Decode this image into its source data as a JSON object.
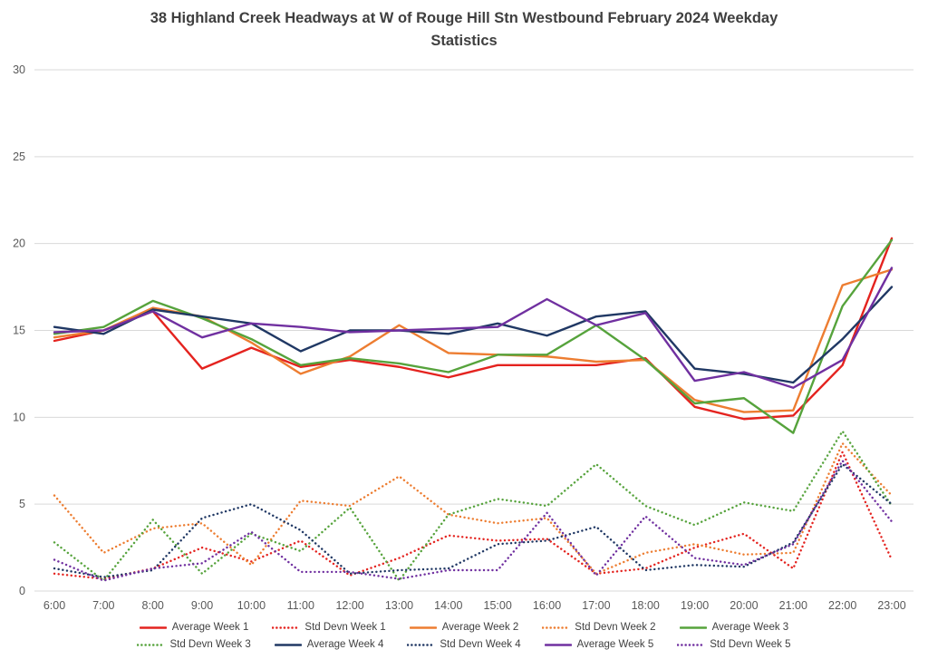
{
  "title": {
    "line1": "38 Highland Creek Headways at W of Rouge Hill Stn Westbound February 2024 Weekday",
    "line2": "Statistics"
  },
  "colors": {
    "grid": "#d9d9d9",
    "axis_text": "#595959",
    "title_text": "#3f3f3f",
    "legend_text": "#404040"
  },
  "chart_data": {
    "type": "line",
    "title": "38 Highland Creek Headways at W of Rouge Hill Stn Westbound February 2024 Weekday Statistics",
    "xlabel": "",
    "ylabel": "",
    "ylim": [
      0,
      30
    ],
    "yticks": [
      0,
      5,
      10,
      15,
      20,
      25,
      30
    ],
    "grid": true,
    "legend_position": "bottom",
    "x": [
      "6:00",
      "7:00",
      "8:00",
      "9:00",
      "10:00",
      "11:00",
      "12:00",
      "13:00",
      "14:00",
      "15:00",
      "16:00",
      "17:00",
      "18:00",
      "19:00",
      "20:00",
      "21:00",
      "22:00",
      "23:00"
    ],
    "series": [
      {
        "name": "Average Week 1",
        "color": "#e4231f",
        "style": "solid",
        "values": [
          14.4,
          15.0,
          16.1,
          12.8,
          14.0,
          12.9,
          13.3,
          12.9,
          12.3,
          13.0,
          13.0,
          13.0,
          13.4,
          10.6,
          9.9,
          10.1,
          13.0,
          20.3
        ]
      },
      {
        "name": "Std Devn Week 1",
        "color": "#e4231f",
        "style": "dotted",
        "values": [
          1.0,
          0.7,
          1.3,
          2.5,
          1.7,
          2.9,
          0.9,
          1.9,
          3.2,
          2.9,
          3.0,
          1.0,
          1.3,
          2.5,
          3.3,
          1.3,
          8.0,
          1.8
        ]
      },
      {
        "name": "Average Week 2",
        "color": "#ed7d31",
        "style": "solid",
        "values": [
          14.6,
          15.0,
          16.3,
          15.8,
          14.3,
          12.5,
          13.5,
          15.3,
          13.7,
          13.6,
          13.5,
          13.2,
          13.3,
          11.0,
          10.3,
          10.4,
          17.6,
          18.5
        ]
      },
      {
        "name": "Std Devn Week 2",
        "color": "#ed7d31",
        "style": "dotted",
        "values": [
          5.5,
          2.2,
          3.6,
          3.9,
          1.5,
          5.2,
          4.9,
          6.6,
          4.4,
          3.9,
          4.2,
          1.0,
          2.2,
          2.7,
          2.1,
          2.2,
          8.5,
          5.5
        ]
      },
      {
        "name": "Average Week 3",
        "color": "#56a33c",
        "style": "solid",
        "values": [
          14.8,
          15.2,
          16.7,
          15.7,
          14.5,
          13.0,
          13.4,
          13.1,
          12.6,
          13.6,
          13.6,
          15.3,
          13.3,
          10.8,
          11.1,
          9.1,
          16.4,
          20.2
        ]
      },
      {
        "name": "Std Devn Week 3",
        "color": "#56a33c",
        "style": "dotted",
        "values": [
          2.8,
          0.6,
          4.1,
          1.0,
          3.3,
          2.3,
          4.8,
          0.6,
          4.4,
          5.3,
          4.9,
          7.3,
          4.9,
          3.8,
          5.1,
          4.6,
          9.2,
          4.9
        ]
      },
      {
        "name": "Average Week 4",
        "color": "#203864",
        "style": "solid",
        "values": [
          15.2,
          14.8,
          16.2,
          15.8,
          15.4,
          13.8,
          15.0,
          15.0,
          14.8,
          15.4,
          14.7,
          15.8,
          16.1,
          12.8,
          12.5,
          12.0,
          14.5,
          17.5
        ]
      },
      {
        "name": "Std Devn Week 4",
        "color": "#203864",
        "style": "dotted",
        "values": [
          1.3,
          0.8,
          1.2,
          4.2,
          5.0,
          3.5,
          1.0,
          1.2,
          1.3,
          2.7,
          2.9,
          3.7,
          1.2,
          1.5,
          1.4,
          2.8,
          7.3,
          5.0
        ]
      },
      {
        "name": "Average Week 5",
        "color": "#7030a0",
        "style": "solid",
        "values": [
          14.9,
          15.0,
          16.1,
          14.6,
          15.4,
          15.2,
          14.9,
          15.0,
          15.1,
          15.2,
          16.8,
          15.3,
          16.0,
          12.1,
          12.6,
          11.7,
          13.3,
          18.6
        ]
      },
      {
        "name": "Std Devn Week 5",
        "color": "#7030a0",
        "style": "dotted",
        "values": [
          1.8,
          0.6,
          1.3,
          1.6,
          3.4,
          1.1,
          1.1,
          0.7,
          1.2,
          1.2,
          4.5,
          0.9,
          4.3,
          1.9,
          1.5,
          2.7,
          7.5,
          4.0
        ]
      }
    ]
  }
}
